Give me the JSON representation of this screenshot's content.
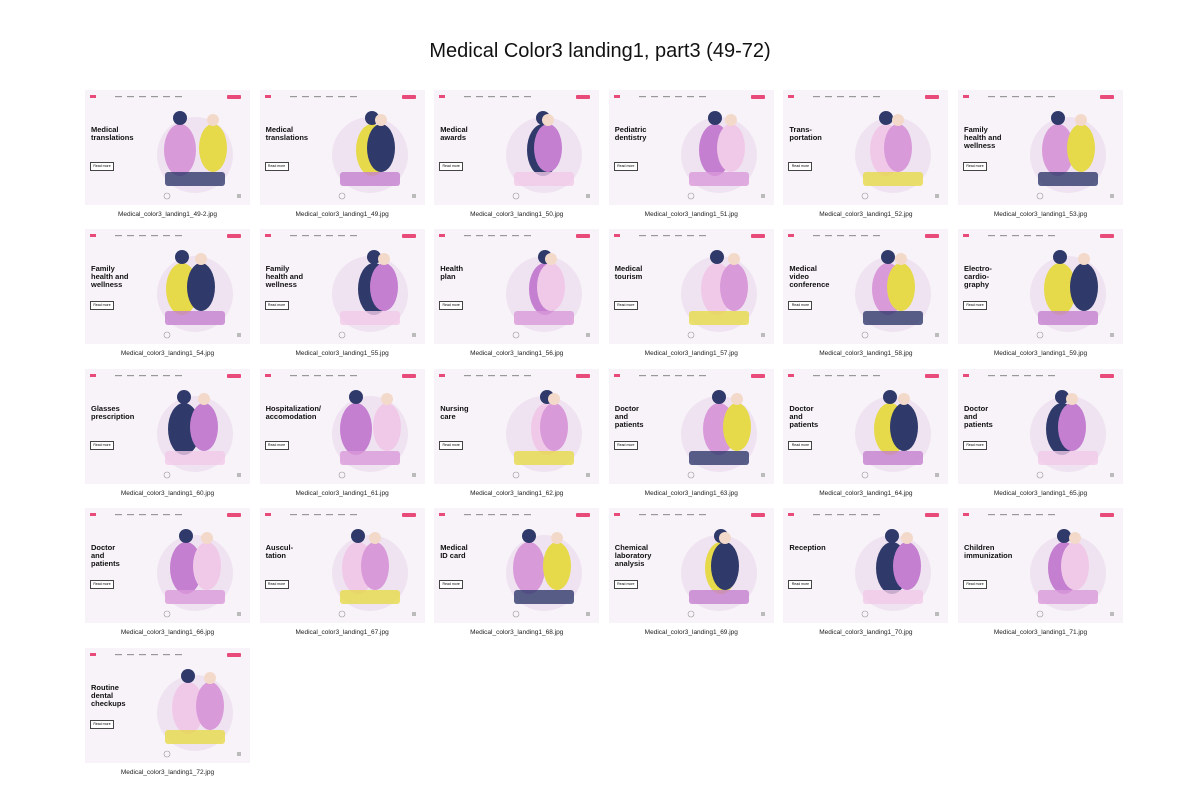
{
  "title": "Medical Color3 landing1, part3 (49-72)",
  "button_label": "Read more",
  "cards": [
    {
      "heading": "Medical\ntranslations",
      "file": "Medical_color3_landing1_49-2.jpg"
    },
    {
      "heading": "Medical\ntranslations",
      "file": "Medical_color3_landing1_49.jpg"
    },
    {
      "heading": "Medical\nawards",
      "file": "Medical_color3_landing1_50.jpg"
    },
    {
      "heading": "Pediatric\ndentistry",
      "file": "Medical_color3_landing1_51.jpg"
    },
    {
      "heading": "Trans-\nportation",
      "file": "Medical_color3_landing1_52.jpg"
    },
    {
      "heading": "Family\nhealth and\nwellness",
      "file": "Medical_color3_landing1_53.jpg"
    },
    {
      "heading": "Family\nhealth and\nwellness",
      "file": "Medical_color3_landing1_54.jpg"
    },
    {
      "heading": "Family\nhealth and\nwellness",
      "file": "Medical_color3_landing1_55.jpg"
    },
    {
      "heading": "Health\nplan",
      "file": "Medical_color3_landing1_56.jpg"
    },
    {
      "heading": "Medical\ntourism",
      "file": "Medical_color3_landing1_57.jpg"
    },
    {
      "heading": "Medical\nvideo\nconference",
      "file": "Medical_color3_landing1_58.jpg"
    },
    {
      "heading": "Electro-\ncardio-\ngraphy",
      "file": "Medical_color3_landing1_59.jpg"
    },
    {
      "heading": "Glasses\nprescription",
      "file": "Medical_color3_landing1_60.jpg"
    },
    {
      "heading": "Hospitalization/\naccomodation",
      "file": "Medical_color3_landing1_61.jpg"
    },
    {
      "heading": "Nursing\ncare",
      "file": "Medical_color3_landing1_62.jpg"
    },
    {
      "heading": "Doctor\nand\npatients",
      "file": "Medical_color3_landing1_63.jpg"
    },
    {
      "heading": "Doctor\nand\npatients",
      "file": "Medical_color3_landing1_64.jpg"
    },
    {
      "heading": "Doctor\nand\npatients",
      "file": "Medical_color3_landing1_65.jpg"
    },
    {
      "heading": "Doctor\nand\npatients",
      "file": "Medical_color3_landing1_66.jpg"
    },
    {
      "heading": "Auscul-\ntation",
      "file": "Medical_color3_landing1_67.jpg"
    },
    {
      "heading": "Medical\nID card",
      "file": "Medical_color3_landing1_68.jpg"
    },
    {
      "heading": "Chemical\nlaboratory\nanalysis",
      "file": "Medical_color3_landing1_69.jpg"
    },
    {
      "heading": "Reception",
      "file": "Medical_color3_landing1_70.jpg"
    },
    {
      "heading": "Children\nimmunization",
      "file": "Medical_color3_landing1_71.jpg"
    },
    {
      "heading": "Routine\ndental\ncheckups",
      "file": "Medical_color3_landing1_72.jpg"
    }
  ]
}
